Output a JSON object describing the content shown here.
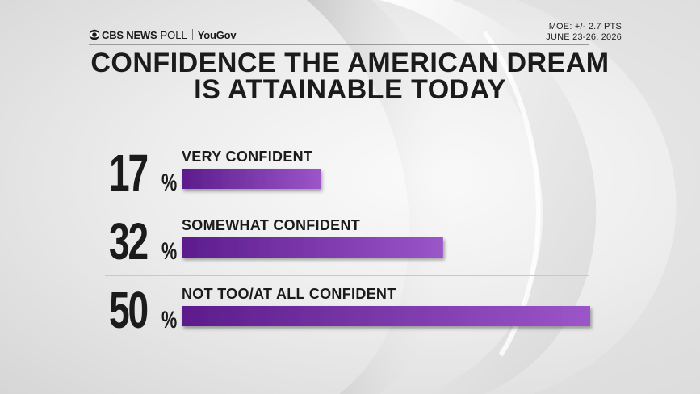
{
  "header": {
    "brand_news": "CBS NEWS",
    "brand_poll": "POLL",
    "brand_partner": "YouGov",
    "moe": "MOE: +/- 2.7 PTS",
    "dates": "JUNE 23-26, 2026"
  },
  "colors": {
    "bar_dark": "#5c1c8c",
    "bar_light": "#9b55c8",
    "text": "#1b1b1b"
  },
  "chart_data": {
    "type": "bar",
    "orientation": "horizontal",
    "title_line1": "CONFIDENCE THE AMERICAN DREAM",
    "title_line2": "IS ATTAINABLE TODAY",
    "categories": [
      "VERY CONFIDENT",
      "SOMEWHAT CONFIDENT",
      "NOT TOO/AT ALL CONFIDENT"
    ],
    "values": [
      17,
      32,
      50
    ],
    "value_labels": [
      "17",
      "32",
      "50"
    ],
    "value_suffix": "%",
    "xlim": [
      0,
      50
    ],
    "grid": false,
    "legend": "none"
  }
}
